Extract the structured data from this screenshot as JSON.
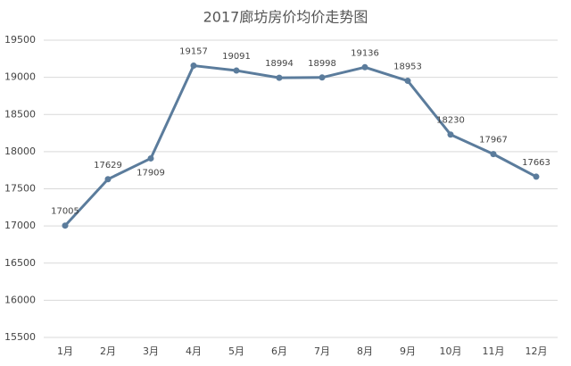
{
  "chart_data": {
    "type": "line",
    "title": "2017廊坊房价均价走势图",
    "categories": [
      "1月",
      "2月",
      "3月",
      "4月",
      "5月",
      "6月",
      "7月",
      "8月",
      "9月",
      "10月",
      "11月",
      "12月"
    ],
    "values": [
      17005,
      17629,
      17909,
      19157,
      19091,
      18994,
      18998,
      19136,
      18953,
      18230,
      17967,
      17663
    ],
    "color": "#5b7c9c",
    "ylim": [
      15500,
      19500
    ],
    "yticks": [
      15500,
      16000,
      16500,
      17000,
      17500,
      18000,
      18500,
      19000,
      19500
    ],
    "grid": true
  }
}
